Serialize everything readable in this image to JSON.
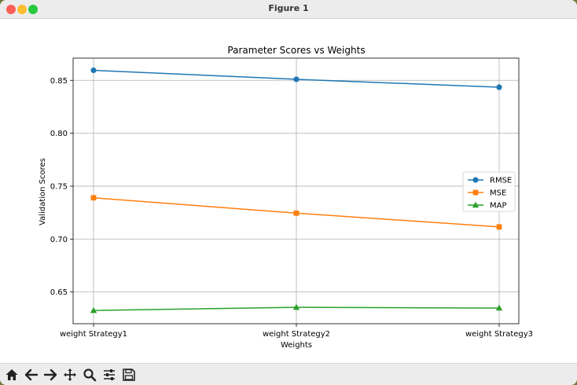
{
  "window": {
    "title": "Figure 1"
  },
  "toolbar": {
    "buttons": [
      {
        "name": "home-icon"
      },
      {
        "name": "back-arrow-icon"
      },
      {
        "name": "forward-arrow-icon"
      },
      {
        "name": "pan-move-icon"
      },
      {
        "name": "zoom-magnifier-icon"
      },
      {
        "name": "configure-subplots-icon"
      },
      {
        "name": "save-disk-icon"
      }
    ]
  },
  "chart_data": {
    "type": "line",
    "title": "Parameter Scores vs Weights",
    "xlabel": "Weights",
    "ylabel": "Validation Scores",
    "categories": [
      "weight Strategy1",
      "weight Strategy2",
      "weight Strategy3"
    ],
    "yticks": [
      "0.65",
      "0.70",
      "0.75",
      "0.80",
      "0.85"
    ],
    "ylim": [
      0.62,
      0.871
    ],
    "grid": true,
    "legend_position": "center-right",
    "series": [
      {
        "name": "RMSE",
        "values": [
          0.8595,
          0.851,
          0.8435
        ],
        "color": "#1f77b4",
        "marker": "circle"
      },
      {
        "name": "MSE",
        "values": [
          0.739,
          0.7245,
          0.7115
        ],
        "color": "#ff7f0e",
        "marker": "square"
      },
      {
        "name": "MAP",
        "values": [
          0.6325,
          0.6355,
          0.6348
        ],
        "color": "#2ca02c",
        "marker": "triangle"
      }
    ]
  }
}
